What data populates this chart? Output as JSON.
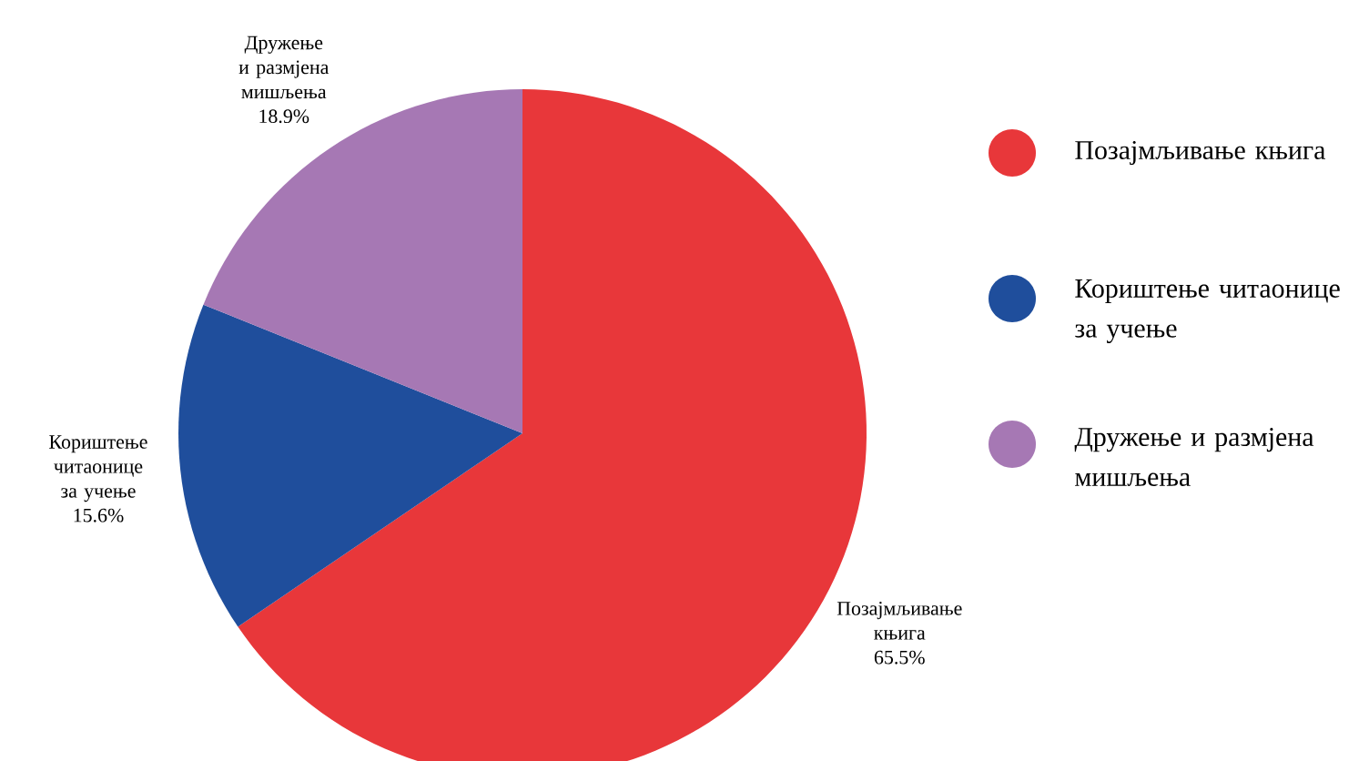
{
  "chart_data": {
    "type": "pie",
    "categories": [
      "Позајмљивање књига",
      "Кориштење читаонице за учење",
      "Дружење и размјена мишљења"
    ],
    "values": [
      65.5,
      15.6,
      18.9
    ],
    "value_labels": [
      "65.5%",
      "15.6%",
      "18.9%"
    ],
    "colors": [
      "#e8373a",
      "#1f4e9c",
      "#a678b4"
    ],
    "legend": "right"
  }
}
